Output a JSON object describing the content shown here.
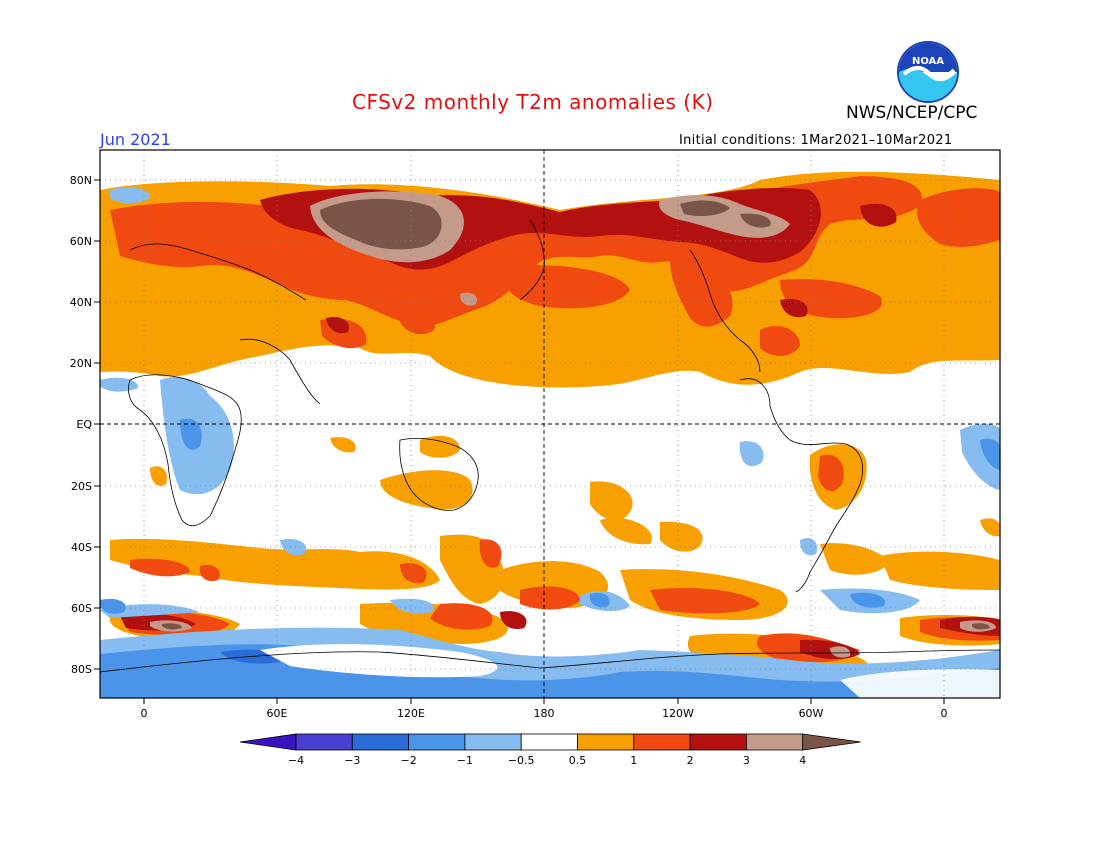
{
  "header": {
    "title": "CFSv2 monthly T2m anomalies (K)",
    "agency": "NWS/NCEP/CPC",
    "logo_text": "NOAA",
    "month": "Jun 2021",
    "initial_conditions": "Initial conditions: 1Mar2021–10Mar2021"
  },
  "map": {
    "lat_labels": [
      "80N",
      "60N",
      "40N",
      "20N",
      "EQ",
      "20S",
      "40S",
      "60S",
      "80S"
    ],
    "lon_labels": [
      "0",
      "60E",
      "120E",
      "180",
      "120W",
      "60W",
      "0"
    ]
  },
  "colorbar": {
    "labels": [
      "−4",
      "−3",
      "−2",
      "−1",
      "−0.5",
      "0.5",
      "1",
      "2",
      "3",
      "4"
    ],
    "colors": [
      "#3a12c0",
      "#4a3fd0",
      "#2a6cd8",
      "#4a94ea",
      "#86bcf0",
      "#ffffff",
      "#f7a000",
      "#f14a10",
      "#b31010",
      "#c49a8a",
      "#7a5446"
    ]
  },
  "legend_colors": {
    "orange": "#f7a000",
    "red": "#f14a10",
    "darkred": "#b31010",
    "tan": "#c49a8a",
    "brown": "#7a5446",
    "lightblue": "#86bcf0",
    "blue": "#4a94ea"
  }
}
